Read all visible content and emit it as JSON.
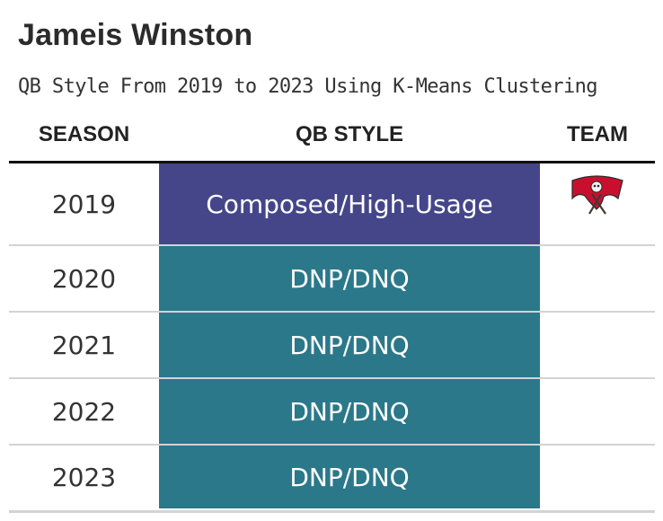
{
  "title": "Jameis Winston",
  "subtitle": "QB Style From 2019 to 2023 Using K-Means Clustering",
  "columns": {
    "season": "SEASON",
    "style": "QB STYLE",
    "team": "TEAM"
  },
  "colors": {
    "composed_high_usage": "#45468a",
    "dnp_dnq": "#2a788a",
    "buccaneers_red": "#c8102e",
    "buccaneers_pewter": "#3d3935"
  },
  "chart_data": {
    "type": "table",
    "title": "Jameis Winston",
    "subtitle": "QB Style From 2019 to 2023 Using K-Means Clustering",
    "columns": [
      "SEASON",
      "QB STYLE",
      "TEAM"
    ],
    "rows": [
      {
        "season": "2019",
        "style": "Composed/High-Usage",
        "team": "buccaneers-logo",
        "color": "#45468a"
      },
      {
        "season": "2020",
        "style": "DNP/DNQ",
        "team": "",
        "color": "#2a788a"
      },
      {
        "season": "2021",
        "style": "DNP/DNQ",
        "team": "",
        "color": "#2a788a"
      },
      {
        "season": "2022",
        "style": "DNP/DNQ",
        "team": "",
        "color": "#2a788a"
      },
      {
        "season": "2023",
        "style": "DNP/DNQ",
        "team": "",
        "color": "#2a788a"
      }
    ]
  }
}
